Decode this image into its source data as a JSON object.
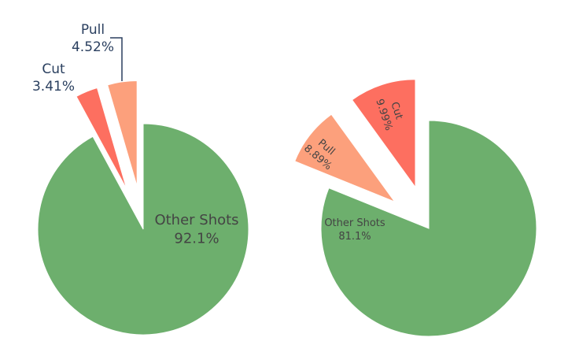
{
  "chart_data": [
    {
      "type": "pie",
      "categories": [
        "Other Shots",
        "Cut",
        "Pull"
      ],
      "values": [
        92.1,
        3.41,
        4.52
      ],
      "value_labels": [
        "92.1%",
        "3.41%",
        "4.52%"
      ],
      "colors": [
        "#6daf6d",
        "#fd6f60",
        "#fca07c"
      ]
    },
    {
      "type": "pie",
      "categories": [
        "Other Shots",
        "Pull",
        "Cut"
      ],
      "values": [
        81.1,
        8.89,
        9.99
      ],
      "value_labels": [
        "81.1%",
        "8.89%",
        "9.99%"
      ],
      "colors": [
        "#6daf6d",
        "#fca07c",
        "#fd6f60"
      ]
    }
  ]
}
